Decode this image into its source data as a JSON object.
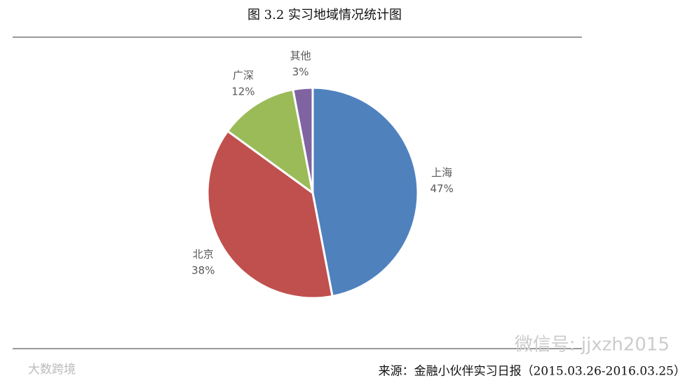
{
  "chart_data": {
    "type": "pie",
    "title": "图 3.2 实习地域情况统计图",
    "categories": [
      "上海",
      "北京",
      "广深",
      "其他"
    ],
    "values": [
      47,
      38,
      12,
      3
    ],
    "value_labels": [
      "47%",
      "38%",
      "12%",
      "3%"
    ],
    "colors": [
      "#4f81bd",
      "#c0504d",
      "#9bbb59",
      "#8064a2"
    ],
    "source": "来源：金融小伙伴实习日报（2015.03.26-2016.03.25）",
    "watermarks": [
      "微信号: jjxzh2015",
      "大数跨境"
    ]
  }
}
